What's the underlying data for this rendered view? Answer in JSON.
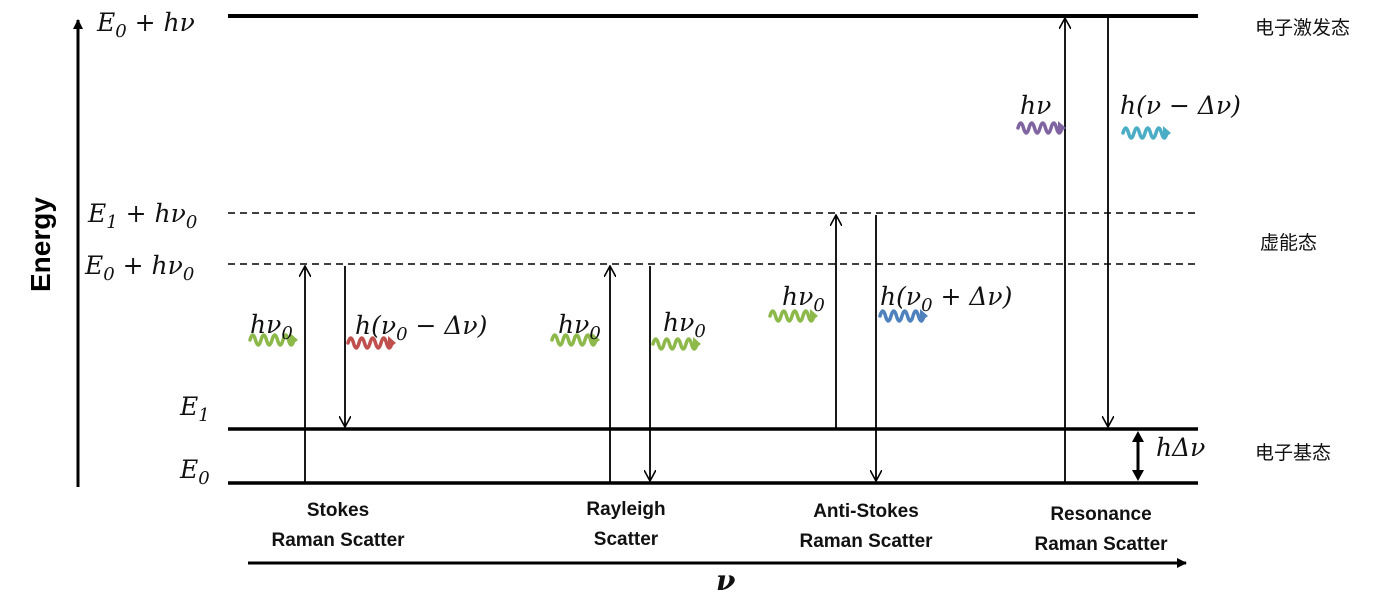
{
  "axis": {
    "y_label": "Energy",
    "x_label": "ν"
  },
  "levels": {
    "excited": {
      "base": "E",
      "sub": "0",
      "rest": " + hν"
    },
    "virtual_high": {
      "base": "E",
      "sub": "1",
      "rest": " + hν",
      "sub2": "0"
    },
    "virtual_low": {
      "base": "E",
      "sub": "0",
      "rest": " + hν",
      "sub2": "0"
    },
    "e1": {
      "base": "E",
      "sub": "1"
    },
    "e0": {
      "base": "E",
      "sub": "0"
    }
  },
  "state_labels": {
    "excited": "电子激发态",
    "virtual": "虚能态",
    "ground": "电子基态"
  },
  "delta_label": "hΔν",
  "photons": {
    "stokes_in": {
      "base": "hν",
      "sub": "0",
      "color": "#8db84a"
    },
    "stokes_out": {
      "base": "h(ν",
      "sub": "0",
      "rest": " − Δν)",
      "color": "#c0504d"
    },
    "rayleigh_in": {
      "base": "hν",
      "sub": "0",
      "color": "#8db84a"
    },
    "rayleigh_out": {
      "base": "hν",
      "sub": "0",
      "color": "#8db84a"
    },
    "anti_in": {
      "base": "hν",
      "sub": "0",
      "color": "#8db84a"
    },
    "anti_out": {
      "base": "h(ν",
      "sub": "0",
      "rest": " + Δν)",
      "color": "#4f81bd"
    },
    "res_in": {
      "base": "hν",
      "color": "#8064a2"
    },
    "res_out": {
      "base": "h(ν − Δν)",
      "color": "#4bacc6"
    }
  },
  "processes": [
    {
      "line1": "Stokes",
      "line2": "Raman Scatter"
    },
    {
      "line1": "Rayleigh",
      "line2": "Scatter"
    },
    {
      "line1": "Anti-Stokes",
      "line2": "Raman Scatter"
    },
    {
      "line1": "Resonance",
      "line2": "Raman Scatter"
    }
  ]
}
